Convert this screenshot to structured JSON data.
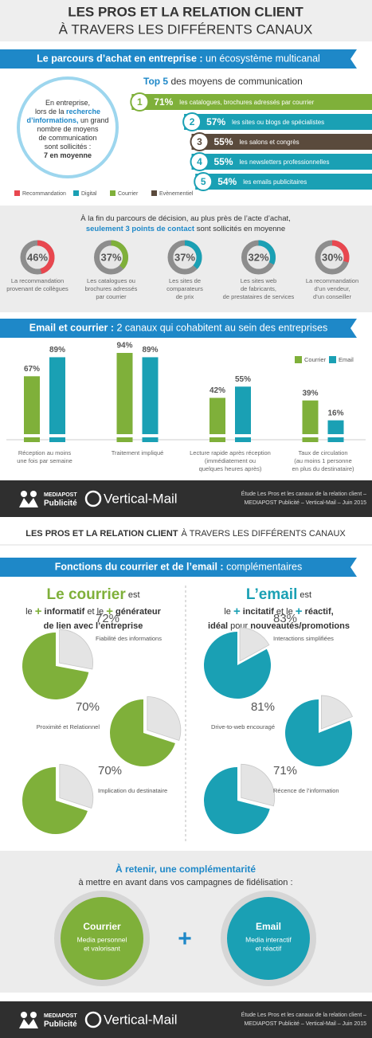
{
  "header": {
    "title": [
      "LES PROS ET LA RELATION CLIENT",
      "À TRAVERS LES DIFFÉRENTS CANAUX"
    ]
  },
  "section1": {
    "banner": [
      {
        "t": "Le parcours d’achat en entreprise :",
        "s": "b"
      },
      {
        "t": " un écosystème multicanal"
      }
    ],
    "circle": [
      [
        {
          "t": "En entreprise,"
        }
      ],
      [
        {
          "t": "lors de la "
        },
        {
          "t": "recherche",
          "s": "blue"
        }
      ],
      [
        {
          "t": "d’informations,",
          "s": "blue"
        },
        {
          "t": " un grand"
        }
      ],
      [
        {
          "t": "nombre de moyens"
        }
      ],
      [
        {
          "t": "de communication"
        }
      ],
      [
        {
          "t": "sont sollicités :"
        }
      ],
      [
        {
          "t": "7 en moyenne",
          "s": "b"
        }
      ]
    ],
    "top5_title": [
      {
        "t": "Top 5",
        "s": "blue"
      },
      {
        "t": " des moyens de communication"
      }
    ],
    "top5": [
      {
        "rank": 1,
        "value": 71,
        "value_label": "71%",
        "label": "les catalogues, brochures adressés par courrier",
        "color": "#7fb03a"
      },
      {
        "rank": 2,
        "value": 57,
        "value_label": "57%",
        "label": "les sites ou blogs de spécialistes",
        "color": "#1aa0b4"
      },
      {
        "rank": 3,
        "value": 55,
        "value_label": "55%",
        "label": "les salons et congrès",
        "color": "#5a4a3c"
      },
      {
        "rank": 4,
        "value": 55,
        "value_label": "55%",
        "label": "les newsletters professionnelles",
        "color": "#1aa0b4"
      },
      {
        "rank": 5,
        "value": 54,
        "value_label": "54%",
        "label": "les emails publicitaires",
        "color": "#1aa0b4"
      }
    ],
    "legend": [
      {
        "name": "Recommandation",
        "color": "#e8474f"
      },
      {
        "name": "Digital",
        "color": "#1aa0b4"
      },
      {
        "name": "Courrier",
        "color": "#7fb03a"
      },
      {
        "name": "Evènementiel",
        "color": "#5a4a3c"
      }
    ]
  },
  "contacts": {
    "intro": [
      [
        {
          "t": "À la fin du parcours de décision, au plus près de l’acte d’achat,"
        }
      ],
      [
        {
          "t": "seulement 3 points de contact",
          "s": "blue"
        },
        {
          "t": " sont sollicités en moyenne"
        }
      ]
    ],
    "items": [
      {
        "value": 46,
        "value_label": "46%",
        "color": "#e8474f",
        "label": [
          "La recommandation",
          "provenant de collègues"
        ]
      },
      {
        "value": 37,
        "value_label": "37%",
        "color": "#7fb03a",
        "label": [
          "Les catalogues ou",
          "brochures adressés",
          "par courrier"
        ]
      },
      {
        "value": 37,
        "value_label": "37%",
        "color": "#1aa0b4",
        "label": [
          "Les sites de",
          "comparateurs",
          "de prix"
        ]
      },
      {
        "value": 32,
        "value_label": "32%",
        "color": "#1aa0b4",
        "label": [
          "Les sites web",
          "de fabricants,",
          "de prestataires de services"
        ]
      },
      {
        "value": 30,
        "value_label": "30%",
        "color": "#e8474f",
        "label": [
          "La recommandation",
          "d’un vendeur,",
          "d’un conseiller"
        ]
      }
    ]
  },
  "section2": {
    "banner": [
      {
        "t": "Email et courrier :",
        "s": "b"
      },
      {
        "t": " 2 canaux qui cohabitent au sein des entreprises"
      }
    ]
  },
  "chart_data": {
    "type": "bar",
    "categories": [
      [
        "Réception au moins",
        "une fois par semaine"
      ],
      [
        "Traitement impliqué"
      ],
      [
        "Lecture rapide après réception",
        "(immédiatement ou",
        "quelques heures après)"
      ],
      [
        "Taux de circulation",
        "(au moins 1 personne",
        "en plus du destinataire)"
      ]
    ],
    "series": [
      {
        "name": "Courrier",
        "color": "#7fb03a",
        "values": [
          67,
          94,
          42,
          39
        ],
        "value_labels": [
          "67%",
          "94%",
          "42%",
          "39%"
        ]
      },
      {
        "name": "Email",
        "color": "#1aa0b4",
        "values": [
          89,
          89,
          55,
          16
        ],
        "value_labels": [
          "89%",
          "89%",
          "55%",
          "16%"
        ]
      }
    ]
  },
  "footer": {
    "brand1": "MEDIAPOST",
    "brand1_sub": "Publicité",
    "brand2": "Vertical-Mail",
    "source": [
      "Étude Les Pros et les canaux de la relation client –",
      "MEDIAPOST Publicité – Vertical-Mail – Juin 2015"
    ]
  },
  "section3": {
    "banner": [
      {
        "t": "Fonctions du courrier et de l’email :",
        "s": "b"
      },
      {
        "t": " complémentaires"
      }
    ]
  },
  "courrier": {
    "header": [
      [
        {
          "t": "Le courrier",
          "s": "big-green"
        },
        {
          "t": " est"
        }
      ],
      [
        {
          "t": "le "
        },
        {
          "t": "+",
          "s": "green"
        },
        {
          "t": " informatif",
          "s": "b"
        },
        {
          "t": " et le "
        },
        {
          "t": "+",
          "s": "green"
        },
        {
          "t": " générateur",
          "s": "b"
        }
      ],
      [
        {
          "t": "de lien avec l’entreprise",
          "s": "b"
        }
      ]
    ],
    "pies": [
      {
        "value": 72,
        "value_label": "72%",
        "caption": "Fiabilité des informations"
      },
      {
        "value": 70,
        "value_label": "70%",
        "caption": "Proximité et Relationnel"
      },
      {
        "value": 70,
        "value_label": "70%",
        "caption": "Implication du destinataire"
      }
    ]
  },
  "email": {
    "header": [
      [
        {
          "t": "L’email",
          "s": "big-teal"
        },
        {
          "t": " est"
        }
      ],
      [
        {
          "t": "le "
        },
        {
          "t": "+",
          "s": "teal"
        },
        {
          "t": " incitatif",
          "s": "b"
        },
        {
          "t": " et le "
        },
        {
          "t": "+",
          "s": "teal"
        },
        {
          "t": " réactif,",
          "s": "b"
        }
      ],
      [
        {
          "t": "idéal",
          "s": "b"
        },
        {
          "t": " pour "
        },
        {
          "t": "nouveautés/promotions",
          "s": "b"
        }
      ]
    ],
    "pies": [
      {
        "value": 83,
        "value_label": "83%",
        "caption": "Interactions simplifiées"
      },
      {
        "value": 81,
        "value_label": "81%",
        "caption": "Drive-to-web encouragé"
      },
      {
        "value": 71,
        "value_label": "71%",
        "caption": "Récence de l’information"
      }
    ]
  },
  "retenir": {
    "lines": [
      "À retenir, une complémentarité",
      "à mettre en avant dans vos campagnes de fidélisation :"
    ],
    "courrier": {
      "title": "Courrier",
      "text": [
        "Media personnel",
        "et valorisant"
      ]
    },
    "email": {
      "title": "Email",
      "text": [
        "Media interactif",
        "et réactif"
      ]
    },
    "plus": "+"
  }
}
